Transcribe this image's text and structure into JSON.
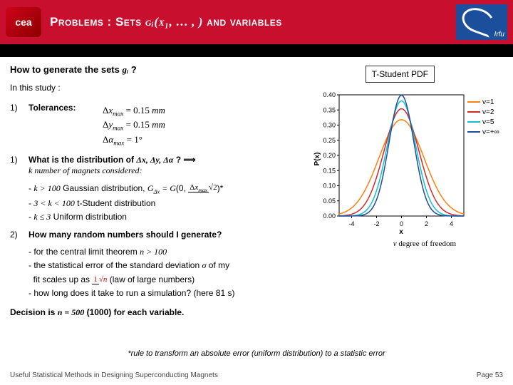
{
  "header": {
    "logo_cea": "cea",
    "title_pre": "Problems : Sets ",
    "title_math": "gᵢ(x₁, … , )",
    "title_post": " and variables",
    "logo_irfu": "Irfu"
  },
  "content": {
    "q1_pre": "How to generate the sets ",
    "q1_math": "gᵢ",
    "q1_post": " ?",
    "study": "In this study :",
    "item1_num": "1)",
    "item1_label": "Tolerances:",
    "eq1": "Δx_max = 0.15 mm",
    "eq2": "Δy_max = 0.15 mm",
    "eq3": "Δα_max = 1°",
    "item2_num": "1)",
    "item2_pre": "What is the distribution of ",
    "item2_math": "Δx, Δy, Δα",
    "item2_post": " ? ⟹",
    "item2_sub": "k number of magnets considered:",
    "dist1_pre": "- ",
    "dist1_k": "k > 100",
    "dist1_txt": " Gaussian distribution, ",
    "dist1_eq": "G_Δx = G(0, Δx_max/√2)",
    "dist1_star": "*",
    "dist2_pre": "- ",
    "dist2_k": "3 < k < 100",
    "dist2_txt": " t-Student distribution",
    "dist3_pre": "- ",
    "dist3_k": "k ≤ 3",
    "dist3_txt": " Uniform distribution",
    "item3_num": "2)",
    "item3_label": "How many random numbers should I generate?",
    "gen1": "- for the central limit theorem n > 100",
    "gen2_pre": "- the statistical error of the standard deviation ",
    "gen2_sigma": "σ",
    "gen2_mid": " of my fit scales up as ",
    "gen2_frac_top": "1",
    "gen2_frac_bot": "√n",
    "gen2_post": " (law of large numbers)",
    "gen3": "- how long does it take to run a simulation? (here 81 s)",
    "decision_pre": "Decision is ",
    "decision_math": "n = 500",
    "decision_post": " (1000) for each variable."
  },
  "chart": {
    "label": "T-Student PDF",
    "ylabel": "P(x)",
    "xlabel": "x",
    "degree_label": "ν degree of freedom",
    "yticks": [
      "0.40",
      "0.35",
      "0.30",
      "0.25",
      "0.20",
      "0.15",
      "0.10",
      "0.05",
      "0.00"
    ],
    "xticks": [
      "-4",
      "-2",
      "0",
      "2",
      "4"
    ],
    "xlim": [
      -5,
      5
    ],
    "ylim": [
      0,
      0.4
    ],
    "background": "#ffffff",
    "curves": [
      {
        "nu": "ν=1",
        "color": "#ff7f0e",
        "peak": 0.318,
        "spread": 1.8
      },
      {
        "nu": "ν=2",
        "color": "#d62728",
        "peak": 0.354,
        "spread": 1.4
      },
      {
        "nu": "ν=5",
        "color": "#17becf",
        "peak": 0.38,
        "spread": 1.15
      },
      {
        "nu": "ν=+∞",
        "color": "#1f4e9c",
        "peak": 0.399,
        "spread": 1.0
      }
    ]
  },
  "footnote": "*rule to transform an absolute error (uniform distribution) to a statistic error",
  "footer": {
    "left": "Useful Statistical Methods in Designing Superconducting Magnets",
    "right": "Page 53"
  }
}
